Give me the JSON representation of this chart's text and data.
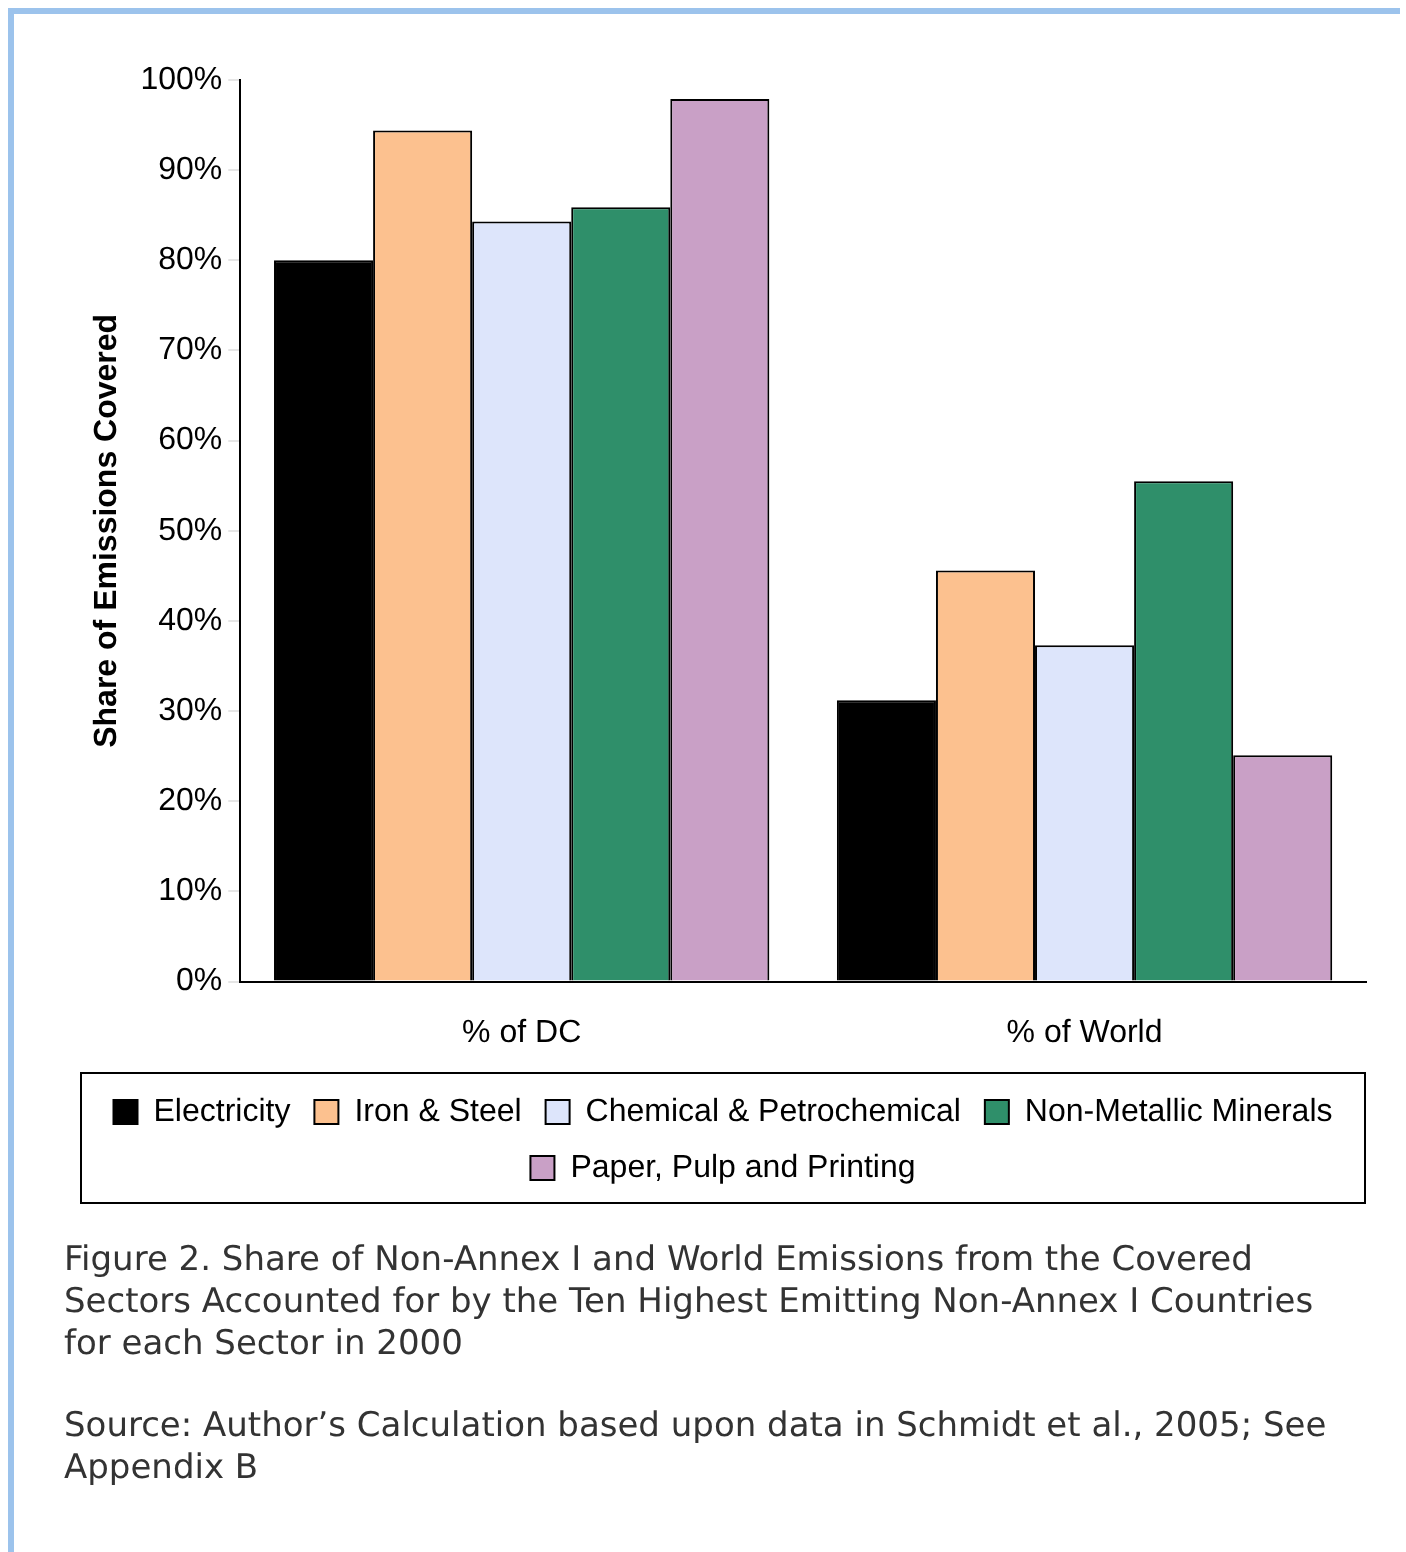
{
  "chart_data": {
    "type": "bar",
    "ylabel": "Share of Emissions Covered",
    "categories": [
      "% of DC",
      "% of World"
    ],
    "series": [
      {
        "name": "Electricity",
        "color": "#000000",
        "values": [
          80,
          31.2
        ]
      },
      {
        "name": "Iron & Steel",
        "color": "#fcc18f",
        "values": [
          94.4,
          45.6
        ]
      },
      {
        "name": "Chemical & Petrochemical",
        "color": "#dde5fb",
        "values": [
          84.3,
          37.3
        ]
      },
      {
        "name": "Non-Metallic Minerals",
        "color": "#2f8f6a",
        "values": [
          85.9,
          55.5
        ]
      },
      {
        "name": "Paper, Pulp and Printing",
        "color": "#c9a0c6",
        "values": [
          97.9,
          25.1
        ]
      }
    ],
    "ylim": [
      0,
      100
    ],
    "yticks": [
      {
        "value": 0,
        "label": "0%"
      },
      {
        "value": 10,
        "label": "10%"
      },
      {
        "value": 20,
        "label": "20%"
      },
      {
        "value": 30,
        "label": "30%"
      },
      {
        "value": 40,
        "label": "40%"
      },
      {
        "value": 50,
        "label": "50%"
      },
      {
        "value": 60,
        "label": "60%"
      },
      {
        "value": 70,
        "label": "70%"
      },
      {
        "value": 80,
        "label": "80%"
      },
      {
        "value": 90,
        "label": "90%"
      },
      {
        "value": 100,
        "label": "100%"
      }
    ],
    "grid": false,
    "legend": "bottom",
    "annotations": [
      "Figure 2. Share of Non-Annex I and World Emissions from the Covered Sectors Accounted for by the Ten Highest Emitting Non-Annex I Countries for each Sector in 2000",
      "Source: Author’s Calculation based upon data in Schmidt et al., 2005; See Appendix B"
    ]
  }
}
